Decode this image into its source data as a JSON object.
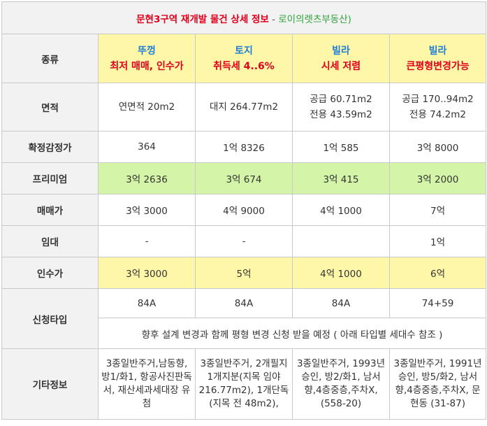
{
  "title": {
    "main": "문현3구역 재개발 물건 상세 정보",
    "separator": " - ",
    "source": "로이의렛츠부동산)"
  },
  "row_labels": {
    "type": "종류",
    "area": "면적",
    "appraisal": "확정감정가",
    "premium": "프리미엄",
    "price": "매매가",
    "lease": "임대",
    "takeover": "인수가",
    "apply_type": "신청타입",
    "etc": "기타정보"
  },
  "columns": [
    {
      "type_top": "뚜껑",
      "type_bottom": "최저 매매, 인수가",
      "area_1": "연면적 20m2",
      "area_2": "",
      "appraisal": "364",
      "premium": "3억 2636",
      "price": "3억 3000",
      "lease": "-",
      "takeover": "3억 3000",
      "apply_type": "84A",
      "etc": "3종일반주거,남동향, 방1/화1, 항공사진판독서, 재산세과세대장 유첨"
    },
    {
      "type_top": "토지",
      "type_bottom": "취득세 4..6%",
      "area_1": "대지 264.77m2",
      "area_2": "",
      "appraisal": "1억 8326",
      "premium": "3억 674",
      "price": "4억 9000",
      "lease": "-",
      "takeover": "5억",
      "apply_type": "84A",
      "etc": "3종일반주거, 2개필지 1개지분(지목 임야 216.77m2), 1개단독(지목 전 48m2),"
    },
    {
      "type_top": "빌라",
      "type_bottom": "시세 저렴",
      "area_1": "공급 60.71m2",
      "area_2": "전용 43.59m2",
      "appraisal": "1억 585",
      "premium": "3억 415",
      "price": "4억 1000",
      "lease": "",
      "takeover": "4억 1000",
      "apply_type": "84A",
      "etc": "3종일반주거, 1993년 승인, 방2/화1, 남서향,4층중층,주차X, (558-20)"
    },
    {
      "type_top": "빌라",
      "type_bottom": "큰평형변경가능",
      "area_1": "공급 170..94m2",
      "area_2": "전용 74.2m2",
      "appraisal": "3억 8000",
      "premium": "3억 2000",
      "price": "7억",
      "lease": "1억",
      "takeover": "6억",
      "apply_type": "74+59",
      "etc": "3종일반주거, 1991년 승인, 방5/화2, 남서향,4층중층,주차X, 문현동 (31-87)"
    }
  ],
  "apply_note": "향후 설계 변경과 함께 평형 변경 신청 받을 예정 ( 아래 타입별 세대수 참조 )",
  "colors": {
    "label_blue": "#1f7fd6",
    "title_red": "#e0001b",
    "source_green": "#2da23a",
    "highlight_yellow": "#fff7a8",
    "highlight_green": "#d4f5a8",
    "label_bg": "#f2f2f2",
    "border": "#c9c9c9"
  }
}
